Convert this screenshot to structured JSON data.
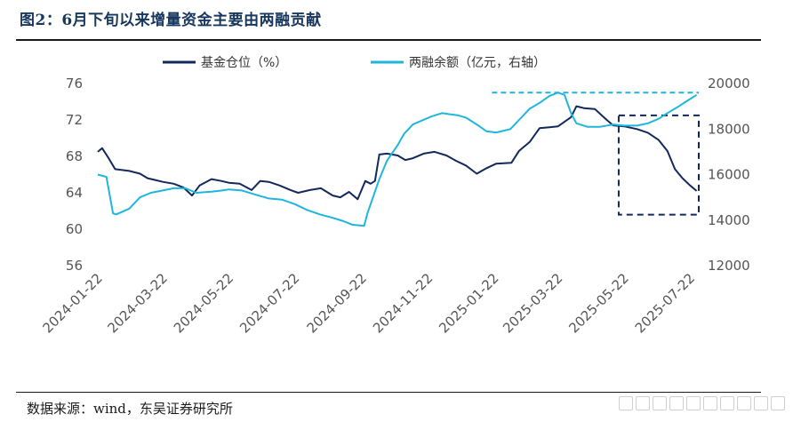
{
  "title": "图2：6月下旬以来增量资金主要由两融贡献",
  "source": "数据来源：wind，东吴证券研究所",
  "colors": {
    "fund_position": "#13285c",
    "margin_balance": "#1fb6dd",
    "title": "#17375e"
  },
  "chart_data": {
    "type": "line",
    "legend_position": "top",
    "grid": false,
    "y_left": {
      "min": 56,
      "max": 76,
      "ticks": [
        56,
        60,
        64,
        68,
        72,
        76
      ]
    },
    "y_right": {
      "min": 12000,
      "max": 20000,
      "ticks": [
        12000,
        14000,
        16000,
        18000,
        20000
      ]
    },
    "x_ticks": [
      "2024-01-22",
      "2024-03-22",
      "2024-05-22",
      "2024-07-22",
      "2024-09-22",
      "2024-11-22",
      "2025-01-22",
      "2025-03-22",
      "2025-05-22",
      "2025-07-22"
    ],
    "x_range": [
      "2024-01-22",
      "2025-07-30"
    ],
    "series": [
      {
        "name": "基金仓位（%）",
        "axis": "left",
        "color": "#13285c",
        "points": [
          [
            "2024-01-22",
            68.5
          ],
          [
            "2024-01-26",
            68.9
          ],
          [
            "2024-02-01",
            67.8
          ],
          [
            "2024-02-07",
            66.6
          ],
          [
            "2024-02-20",
            66.4
          ],
          [
            "2024-03-01",
            66.1
          ],
          [
            "2024-03-08",
            65.6
          ],
          [
            "2024-03-15",
            65.4
          ],
          [
            "2024-03-22",
            65.2
          ],
          [
            "2024-04-01",
            65.0
          ],
          [
            "2024-04-10",
            64.6
          ],
          [
            "2024-04-18",
            63.7
          ],
          [
            "2024-04-25",
            64.8
          ],
          [
            "2024-05-06",
            65.5
          ],
          [
            "2024-05-15",
            65.3
          ],
          [
            "2024-05-22",
            65.1
          ],
          [
            "2024-06-01",
            65.0
          ],
          [
            "2024-06-12",
            64.3
          ],
          [
            "2024-06-20",
            65.3
          ],
          [
            "2024-06-28",
            65.2
          ],
          [
            "2024-07-08",
            64.8
          ],
          [
            "2024-07-18",
            64.3
          ],
          [
            "2024-07-25",
            64.0
          ],
          [
            "2024-08-05",
            64.3
          ],
          [
            "2024-08-15",
            64.5
          ],
          [
            "2024-08-26",
            63.7
          ],
          [
            "2024-09-02",
            63.5
          ],
          [
            "2024-09-10",
            64.1
          ],
          [
            "2024-09-18",
            63.3
          ],
          [
            "2024-09-25",
            65.3
          ],
          [
            "2024-09-30",
            65.0
          ],
          [
            "2024-10-04",
            65.3
          ],
          [
            "2024-10-08",
            68.2
          ],
          [
            "2024-10-15",
            68.3
          ],
          [
            "2024-10-25",
            68.1
          ],
          [
            "2024-11-01",
            67.6
          ],
          [
            "2024-11-08",
            67.8
          ],
          [
            "2024-11-18",
            68.3
          ],
          [
            "2024-11-28",
            68.5
          ],
          [
            "2024-12-09",
            68.1
          ],
          [
            "2024-12-18",
            67.5
          ],
          [
            "2024-12-27",
            67.0
          ],
          [
            "2025-01-06",
            66.1
          ],
          [
            "2025-01-15",
            66.7
          ],
          [
            "2025-01-24",
            67.2
          ],
          [
            "2025-02-07",
            67.3
          ],
          [
            "2025-02-14",
            68.6
          ],
          [
            "2025-02-24",
            69.6
          ],
          [
            "2025-03-05",
            71.1
          ],
          [
            "2025-03-14",
            71.2
          ],
          [
            "2025-03-22",
            71.3
          ],
          [
            "2025-04-03",
            72.3
          ],
          [
            "2025-04-08",
            73.5
          ],
          [
            "2025-04-15",
            73.3
          ],
          [
            "2025-04-25",
            73.2
          ],
          [
            "2025-05-06",
            72.0
          ],
          [
            "2025-05-12",
            71.4
          ],
          [
            "2025-05-22",
            71.3
          ],
          [
            "2025-06-03",
            71.0
          ],
          [
            "2025-06-13",
            70.6
          ],
          [
            "2025-06-23",
            69.8
          ],
          [
            "2025-07-01",
            68.6
          ],
          [
            "2025-07-08",
            66.6
          ],
          [
            "2025-07-15",
            65.6
          ],
          [
            "2025-07-22",
            64.8
          ],
          [
            "2025-07-28",
            64.2
          ]
        ]
      },
      {
        "name": "两融余额（亿元，右轴）",
        "axis": "right",
        "color": "#1fb6dd",
        "points": [
          [
            "2024-01-22",
            16000
          ],
          [
            "2024-01-30",
            15900
          ],
          [
            "2024-02-05",
            14300
          ],
          [
            "2024-02-08",
            14250
          ],
          [
            "2024-02-20",
            14500
          ],
          [
            "2024-03-01",
            15000
          ],
          [
            "2024-03-11",
            15200
          ],
          [
            "2024-03-22",
            15300
          ],
          [
            "2024-04-01",
            15400
          ],
          [
            "2024-04-12",
            15400
          ],
          [
            "2024-04-22",
            15200
          ],
          [
            "2024-05-06",
            15250
          ],
          [
            "2024-05-16",
            15300
          ],
          [
            "2024-05-22",
            15350
          ],
          [
            "2024-06-03",
            15300
          ],
          [
            "2024-06-17",
            15100
          ],
          [
            "2024-06-28",
            14950
          ],
          [
            "2024-07-10",
            14900
          ],
          [
            "2024-07-22",
            14700
          ],
          [
            "2024-08-02",
            14450
          ],
          [
            "2024-08-14",
            14250
          ],
          [
            "2024-08-26",
            14100
          ],
          [
            "2024-09-05",
            13950
          ],
          [
            "2024-09-13",
            13800
          ],
          [
            "2024-09-24",
            13750
          ],
          [
            "2024-09-27",
            14300
          ],
          [
            "2024-10-08",
            15800
          ],
          [
            "2024-10-15",
            16600
          ],
          [
            "2024-10-25",
            17300
          ],
          [
            "2024-10-31",
            17800
          ],
          [
            "2024-11-08",
            18200
          ],
          [
            "2024-11-15",
            18350
          ],
          [
            "2024-11-25",
            18550
          ],
          [
            "2024-12-05",
            18700
          ],
          [
            "2024-12-12",
            18650
          ],
          [
            "2024-12-20",
            18600
          ],
          [
            "2024-12-27",
            18500
          ],
          [
            "2025-01-06",
            18200
          ],
          [
            "2025-01-15",
            17900
          ],
          [
            "2025-01-24",
            17850
          ],
          [
            "2025-02-06",
            18000
          ],
          [
            "2025-02-14",
            18400
          ],
          [
            "2025-02-24",
            18900
          ],
          [
            "2025-03-05",
            19150
          ],
          [
            "2025-03-14",
            19450
          ],
          [
            "2025-03-22",
            19600
          ],
          [
            "2025-03-28",
            19500
          ],
          [
            "2025-04-03",
            18700
          ],
          [
            "2025-04-08",
            18250
          ],
          [
            "2025-04-18",
            18100
          ],
          [
            "2025-04-30",
            18100
          ],
          [
            "2025-05-12",
            18200
          ],
          [
            "2025-05-22",
            18150
          ],
          [
            "2025-06-03",
            18150
          ],
          [
            "2025-06-13",
            18250
          ],
          [
            "2025-06-23",
            18450
          ],
          [
            "2025-07-01",
            18700
          ],
          [
            "2025-07-10",
            18950
          ],
          [
            "2025-07-18",
            19200
          ],
          [
            "2025-07-28",
            19500
          ]
        ]
      }
    ],
    "annotations": [
      {
        "kind": "dashed_box",
        "color": "#13285c",
        "x": [
          "2025-05-22",
          "2025-07-30"
        ],
        "y_left": [
          61.6,
          72.5
        ]
      },
      {
        "kind": "dashed_hline",
        "color": "#1fb6dd",
        "y_right": 19600,
        "x": [
          "2025-01-20",
          "2025-07-30"
        ]
      }
    ]
  }
}
